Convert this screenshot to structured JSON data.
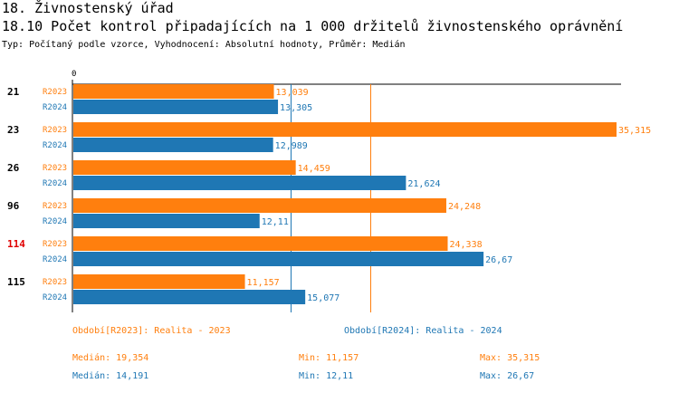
{
  "header": {
    "title": "18. Živnostenský úřad",
    "subtitle": "18.10 Počet kontrol připadajících na 1 000 držitelů živnostenského oprávnění",
    "meta": "Typ: Počítaný podle vzorce, Vyhodnocení: Absolutní hodnoty, Průměr: Medián"
  },
  "colors": {
    "r2023": "#ff7f0e",
    "r2024": "#1f77b4",
    "highlight": "#e00000"
  },
  "chart_data": {
    "type": "bar",
    "orientation": "horizontal",
    "categories": [
      "21",
      "23",
      "26",
      "96",
      "114",
      "115"
    ],
    "highlighted_category": "114",
    "series": [
      {
        "name": "R2023",
        "values": [
          13.039,
          35.315,
          14.459,
          24.248,
          24.338,
          11.157
        ],
        "labels": [
          "13,039",
          "35,315",
          "14,459",
          "24,248",
          "24,338",
          "11,157"
        ]
      },
      {
        "name": "R2024",
        "values": [
          13.305,
          12.989,
          21.624,
          12.11,
          26.67,
          15.077
        ],
        "labels": [
          "13,305",
          "12,989",
          "21,624",
          "12,11",
          "26,67",
          "15,077"
        ]
      }
    ],
    "axis_zero_label": "0",
    "xlim": [
      0,
      35.315
    ],
    "median_lines": {
      "R2023": 19.354,
      "R2024": 14.191
    }
  },
  "legend": {
    "r2023": "Období[R2023]: Realita - 2023",
    "r2024": "Období[R2024]: Realita - 2024"
  },
  "stats": {
    "r2023": {
      "median": "Medián: 19,354",
      "min": "Min: 11,157",
      "max": "Max: 35,315"
    },
    "r2024": {
      "median": "Medián: 14,191",
      "min": "Min: 12,11",
      "max": "Max: 26,67"
    }
  }
}
